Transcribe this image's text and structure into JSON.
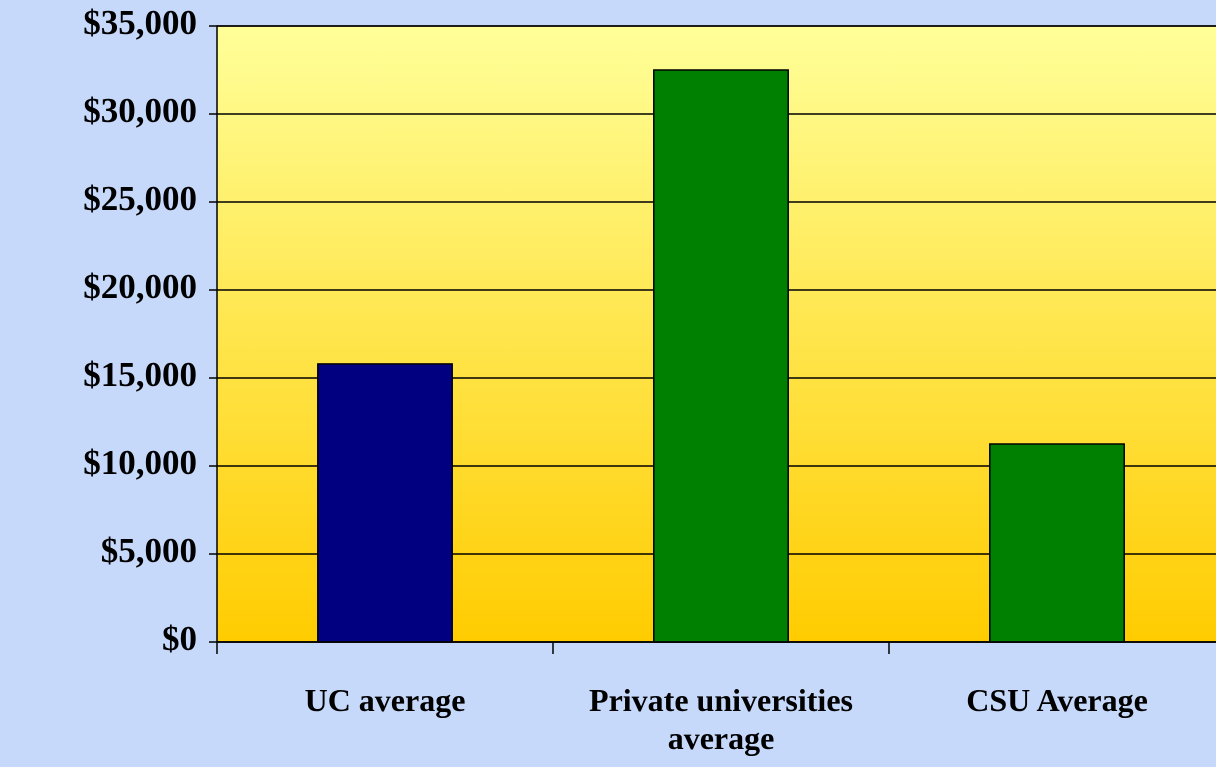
{
  "chart_data": {
    "type": "bar",
    "categories": [
      "UC average",
      "Private universities average",
      "CSU Average"
    ],
    "values": [
      15800,
      32500,
      11250
    ],
    "colors": [
      "#000080",
      "#008000",
      "#008000"
    ],
    "ylim": [
      0,
      35000
    ],
    "yticks": [
      {
        "value": 0,
        "label": "$0"
      },
      {
        "value": 5000,
        "label": "$5,000"
      },
      {
        "value": 10000,
        "label": "$10,000"
      },
      {
        "value": 15000,
        "label": "$15,000"
      },
      {
        "value": 20000,
        "label": "$20,000"
      },
      {
        "value": 25000,
        "label": "$25,000"
      },
      {
        "value": 30000,
        "label": "$30,000"
      },
      {
        "value": 35000,
        "label": "$35,000"
      }
    ],
    "grid": true
  }
}
